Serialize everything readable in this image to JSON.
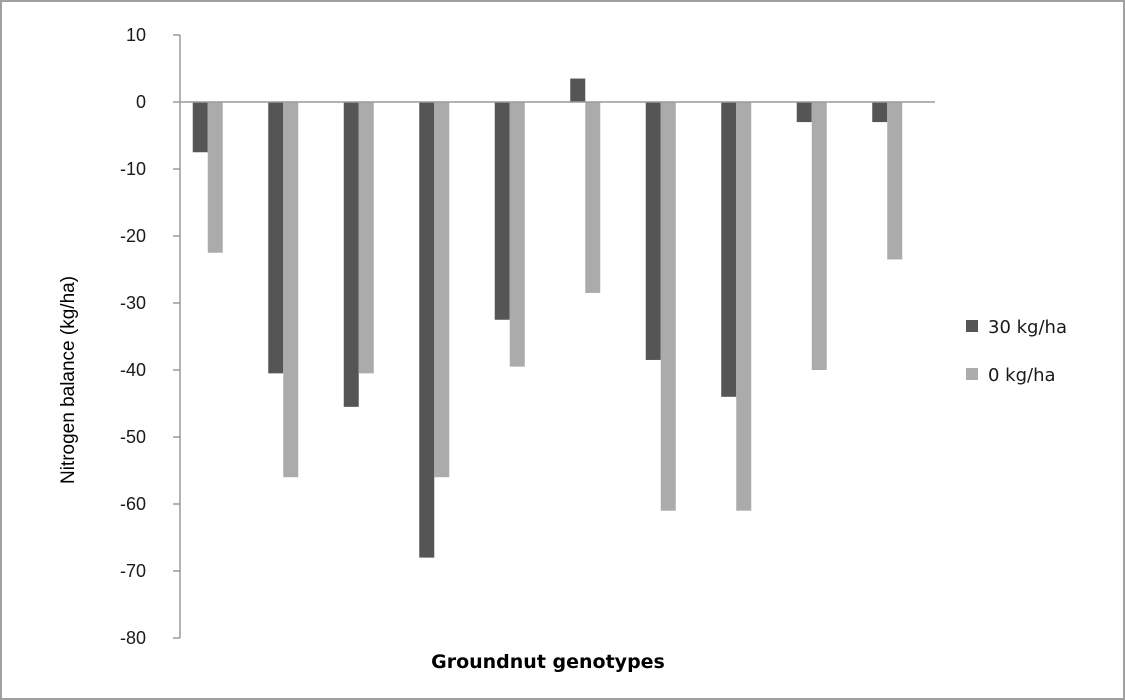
{
  "chart_data": {
    "type": "bar",
    "title": "",
    "xlabel": "Groundnut genotypes",
    "ylabel": "Nitrogen balance (kg/ha)",
    "ylim": [
      -80,
      10
    ],
    "yticks": [
      "10",
      "0",
      "-10",
      "-20",
      "-30",
      "-40",
      "-50",
      "-60",
      "-70",
      "-80"
    ],
    "categories": [
      "",
      "",
      "",
      "",
      "",
      "",
      "",
      "",
      "",
      ""
    ],
    "series": [
      {
        "name": "30 kg/ha",
        "color": "#555555",
        "values": [
          -7.5,
          -40.5,
          -45.5,
          -68,
          -32.5,
          3.5,
          -38.5,
          -44,
          -3,
          -3
        ]
      },
      {
        "name": "0 kg/ha",
        "color": "#ababab",
        "values": [
          -22.5,
          -56,
          -40.5,
          -56,
          -39.5,
          -28.5,
          -61,
          -61,
          -40,
          -23.5
        ]
      }
    ],
    "grid": false,
    "legend": "right"
  }
}
